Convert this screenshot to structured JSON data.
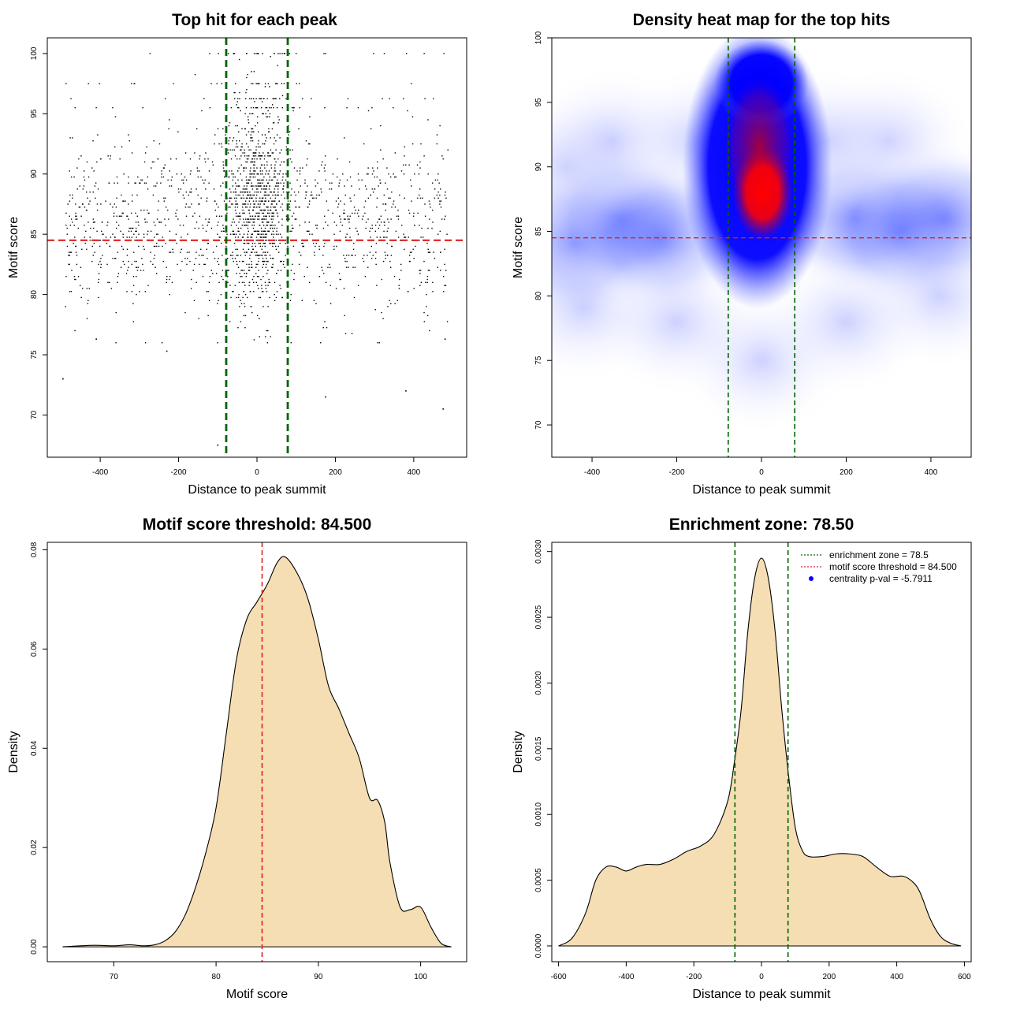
{
  "chart_data": [
    {
      "id": "p1",
      "type": "scatter",
      "title": "Top hit for each peak",
      "xlabel": "Distance to peak summit",
      "ylabel": "Motif score",
      "xlim": [
        -535,
        535
      ],
      "ylim": [
        66.5,
        101.3
      ],
      "xticks": [
        -400,
        -200,
        0,
        200,
        400
      ],
      "yticks": [
        70,
        75,
        80,
        85,
        90,
        95,
        100
      ],
      "vlines": [
        -78.5,
        78.5
      ],
      "hline": 84.5,
      "vline_color": "#006400",
      "hline_color": "#e02020",
      "outlier_points": [
        {
          "x": -495,
          "y": 73.0
        },
        {
          "x": -100,
          "y": 67.5
        },
        {
          "x": 175,
          "y": 71.5
        },
        {
          "x": 380,
          "y": 72.0
        },
        {
          "x": 475,
          "y": 70.5
        },
        {
          "x": -410,
          "y": 76.3
        },
        {
          "x": -230,
          "y": 75.3
        },
        {
          "x": 480,
          "y": 76.3
        }
      ]
    },
    {
      "id": "p2",
      "type": "heatmap",
      "title": "Density heat map for the top hits",
      "xlabel": "Distance to peak summit",
      "ylabel": "Motif score",
      "xlim": [
        -495,
        495
      ],
      "ylim": [
        67.5,
        100
      ],
      "xticks": [
        -400,
        -200,
        0,
        200,
        400
      ],
      "yticks": [
        70,
        75,
        80,
        85,
        90,
        95,
        100
      ],
      "vlines": [
        -78.5,
        78.5
      ],
      "hline": 84.5,
      "vline_color": "#006400",
      "hline_color": "#e02020",
      "colors": [
        "#ffffff",
        "#0000ff",
        "#ff0000"
      ]
    },
    {
      "id": "p3",
      "type": "area",
      "title": "Motif score threshold: 84.500",
      "xlabel": "Motif score",
      "ylabel": "Density",
      "xlim": [
        63.5,
        104.5
      ],
      "ylim": [
        -0.003,
        0.0815
      ],
      "xticks": [
        70,
        80,
        90,
        100
      ],
      "yticks": [
        0.0,
        0.02,
        0.04,
        0.06,
        0.08
      ],
      "ytick_labels": [
        "0.00",
        "0.02",
        "0.04",
        "0.06",
        "0.08"
      ],
      "fill_color": "#f5deb3",
      "vline": 84.5,
      "vline_color": "#e02020",
      "x": [
        65,
        68,
        70,
        71.5,
        73,
        74,
        75,
        76,
        77,
        78,
        79,
        80,
        81,
        82,
        83,
        84,
        85,
        86,
        86.8,
        88,
        89,
        90,
        91,
        92,
        93,
        94,
        95,
        95.8,
        96.5,
        97,
        98,
        99,
        100,
        101,
        102,
        103
      ],
      "y": [
        0.0,
        0.0003,
        0.0002,
        0.0004,
        0.0002,
        0.0004,
        0.0012,
        0.003,
        0.0065,
        0.012,
        0.019,
        0.028,
        0.043,
        0.058,
        0.066,
        0.0695,
        0.073,
        0.0775,
        0.0785,
        0.075,
        0.07,
        0.062,
        0.0525,
        0.048,
        0.043,
        0.038,
        0.03,
        0.0295,
        0.025,
        0.017,
        0.008,
        0.0075,
        0.008,
        0.004,
        0.0007,
        0.0
      ]
    },
    {
      "id": "p4",
      "type": "area",
      "title": "Enrichment zone: 78.50",
      "xlabel": "Distance to peak summit",
      "ylabel": "Density",
      "xlim": [
        -620,
        620
      ],
      "ylim": [
        -0.00012,
        0.00307
      ],
      "xticks": [
        -600,
        -400,
        -200,
        0,
        200,
        400,
        600
      ],
      "yticks": [
        0.0,
        0.0005,
        0.001,
        0.0015,
        0.002,
        0.0025,
        0.003
      ],
      "ytick_labels": [
        "0.0000",
        "0.0005",
        "0.0010",
        "0.0015",
        "0.0020",
        "0.0025",
        "0.0030"
      ],
      "fill_color": "#f5deb3",
      "vlines": [
        -78.5,
        78.5
      ],
      "vline_color": "#006400",
      "x": [
        -600,
        -560,
        -520,
        -490,
        -460,
        -430,
        -400,
        -370,
        -340,
        -300,
        -260,
        -220,
        -180,
        -140,
        -100,
        -80,
        -60,
        -40,
        -20,
        0,
        20,
        40,
        60,
        80,
        100,
        120,
        140,
        180,
        220,
        260,
        300,
        340,
        380,
        420,
        450,
        470,
        500,
        530,
        560,
        590
      ],
      "y": [
        0.0,
        6e-05,
        0.00025,
        0.0005,
        0.0006,
        0.0006,
        0.00057,
        0.0006,
        0.00062,
        0.00062,
        0.00066,
        0.00072,
        0.00076,
        0.00085,
        0.0011,
        0.0014,
        0.0018,
        0.0024,
        0.0028,
        0.00295,
        0.0028,
        0.0024,
        0.0018,
        0.0013,
        0.0009,
        0.00073,
        0.00068,
        0.00068,
        0.0007,
        0.0007,
        0.00068,
        0.0006,
        0.00053,
        0.00053,
        0.00048,
        0.0004,
        0.0002,
        7e-05,
        2e-05,
        0.0
      ],
      "legend": [
        {
          "label": "enrichment zone = 78.5",
          "color": "#006400",
          "style": "dotted-line"
        },
        {
          "label": "motif score threshold = 84.500",
          "color": "#e02020",
          "style": "dotted-line"
        },
        {
          "label": "centrality p-val = -5.7911",
          "color": "#0000ff",
          "style": "dot"
        }
      ]
    }
  ]
}
